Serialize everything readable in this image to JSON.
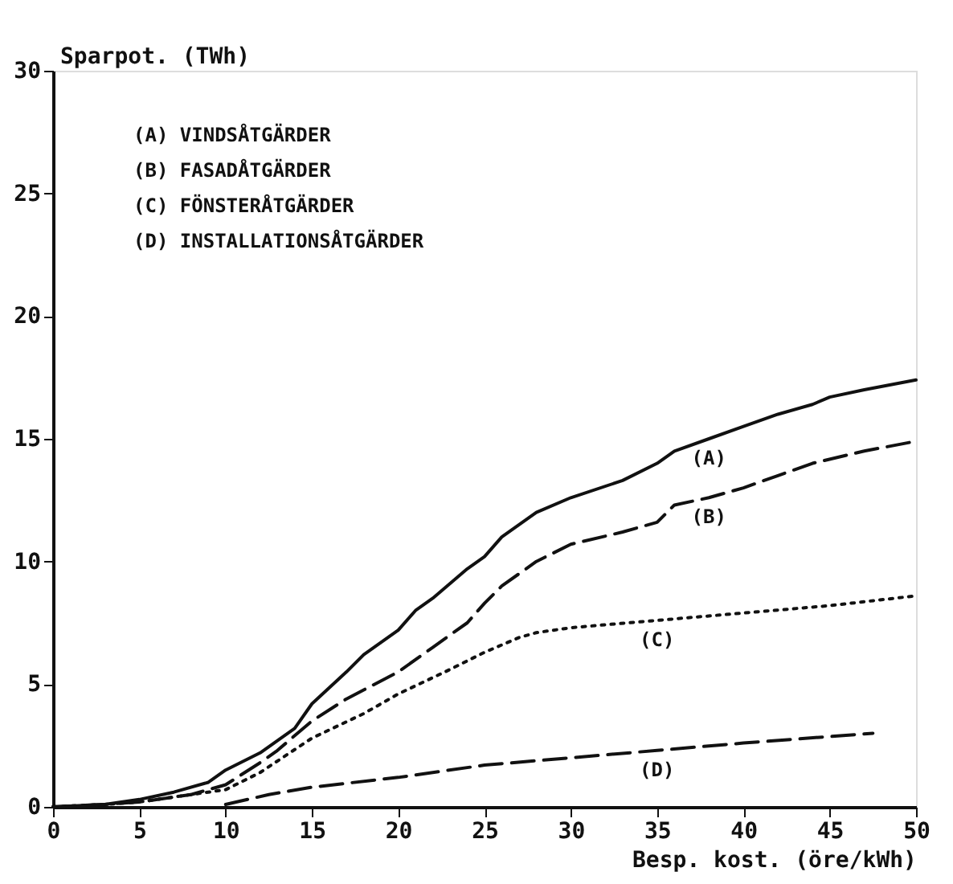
{
  "chart_data": {
    "type": "line",
    "ylabel": "Sparpot. (TWh)",
    "xlabel": "Besp. kost. (öre/kWh)",
    "xlim": [
      0,
      50
    ],
    "xticks": [
      0,
      5,
      10,
      15,
      20,
      25,
      30,
      35,
      40,
      45,
      50
    ],
    "ylim": [
      0,
      30
    ],
    "yticks": [
      0,
      5,
      10,
      15,
      20,
      25,
      30
    ],
    "grid": false,
    "marker": "none",
    "series": [
      {
        "name": "(A)",
        "color": "#111111",
        "line_style": "solid",
        "x": [
          0,
          3,
          5,
          7,
          9,
          10,
          12,
          14,
          15,
          17,
          18,
          20,
          21,
          22,
          24,
          25,
          26,
          28,
          30,
          33,
          35,
          36,
          38,
          40,
          42,
          44,
          45,
          47,
          50
        ],
        "values": [
          0,
          0.1,
          0.3,
          0.6,
          1.0,
          1.5,
          2.2,
          3.2,
          4.2,
          5.5,
          6.2,
          7.2,
          8.0,
          8.5,
          9.7,
          10.2,
          11.0,
          12.0,
          12.6,
          13.3,
          14.0,
          14.5,
          15.0,
          15.5,
          16.0,
          16.4,
          16.7,
          17.0,
          17.4
        ]
      },
      {
        "name": "(B)",
        "color": "#111111",
        "line_style": "dashed",
        "x": [
          0,
          3,
          5,
          8,
          10,
          12,
          13,
          15,
          17,
          20,
          22,
          24,
          25,
          26,
          28,
          30,
          33,
          35,
          36,
          38,
          40,
          42,
          44,
          47,
          50
        ],
        "values": [
          0,
          0.1,
          0.2,
          0.5,
          0.9,
          1.8,
          2.3,
          3.5,
          4.4,
          5.5,
          6.5,
          7.5,
          8.3,
          9.0,
          10.0,
          10.7,
          11.2,
          11.6,
          12.3,
          12.6,
          13.0,
          13.5,
          14.0,
          14.5,
          14.9
        ]
      },
      {
        "name": "(C)",
        "color": "#111111",
        "line_style": "dotted",
        "x": [
          0,
          3,
          5,
          10,
          12,
          15,
          18,
          20,
          23,
          25,
          27,
          28,
          30,
          35,
          40,
          45,
          50
        ],
        "values": [
          0,
          0.1,
          0.2,
          0.7,
          1.4,
          2.8,
          3.8,
          4.6,
          5.6,
          6.3,
          6.9,
          7.1,
          7.3,
          7.6,
          7.9,
          8.2,
          8.6
        ]
      },
      {
        "name": "(D)",
        "color": "#111111",
        "line_style": "dashed",
        "x": [
          10,
          12.5,
          15,
          20,
          25,
          30,
          35,
          40,
          47.5
        ],
        "values": [
          0.1,
          0.5,
          0.8,
          1.2,
          1.7,
          2.0,
          2.3,
          2.6,
          3.0
        ]
      }
    ],
    "annotations": [
      "(A) VINDSÅTGÄRDER",
      "(B) FASADÅTGÄRDER",
      "(C) FÖNSTERÅTGÄRDER",
      "(D) INSTALLATIONSÅTGÄRDER"
    ]
  }
}
